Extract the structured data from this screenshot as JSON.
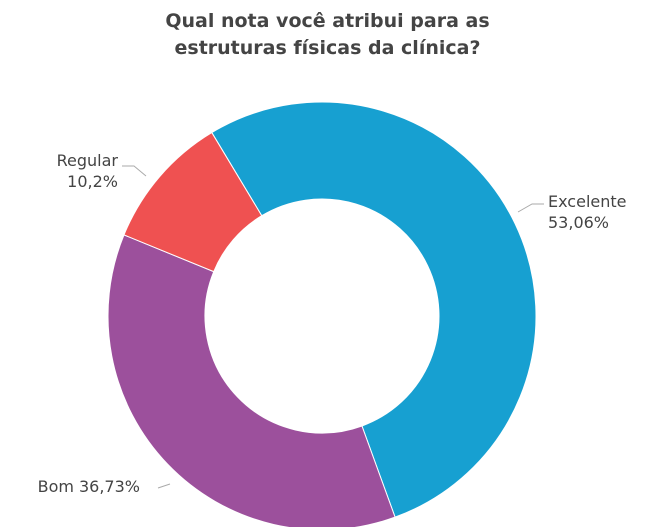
{
  "chart_data": {
    "type": "donut",
    "title": "Qual nota você atribui para as estruturas físicas da clínica?",
    "categories": [
      "Excelente",
      "Bom",
      "Regular"
    ],
    "values": [
      53.06,
      36.73,
      10.2
    ],
    "value_labels": [
      "53,06%",
      "36,73%",
      "10,2%"
    ],
    "colors": [
      "#17a0d1",
      "#9c509c",
      "#ef5151"
    ]
  }
}
